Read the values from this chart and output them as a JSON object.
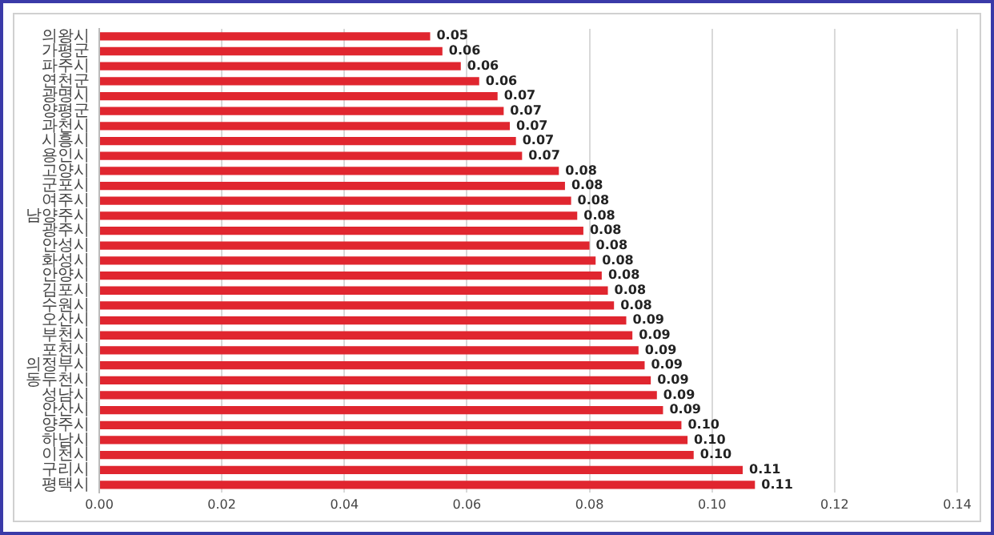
{
  "chart_data": {
    "type": "bar",
    "orientation": "horizontal",
    "categories": [
      "의왕시",
      "가평군",
      "파주시",
      "연천군",
      "광명시",
      "양평군",
      "과천시",
      "시흥시",
      "용인시",
      "고양시",
      "군포시",
      "여주시",
      "남양주시",
      "광주시",
      "안성시",
      "화성시",
      "안양시",
      "김포시",
      "수원시",
      "오산시",
      "부천시",
      "포천시",
      "의정부시",
      "동두천시",
      "성남시",
      "안산시",
      "양주시",
      "하남시",
      "이천시",
      "구리시",
      "평택시"
    ],
    "values": [
      0.054,
      0.056,
      0.059,
      0.062,
      0.065,
      0.066,
      0.067,
      0.068,
      0.069,
      0.075,
      0.076,
      0.077,
      0.078,
      0.079,
      0.08,
      0.081,
      0.082,
      0.083,
      0.084,
      0.086,
      0.087,
      0.088,
      0.089,
      0.09,
      0.091,
      0.092,
      0.095,
      0.096,
      0.097,
      0.105,
      0.107
    ],
    "value_labels": [
      "0.05",
      "0.06",
      "0.06",
      "0.06",
      "0.07",
      "0.07",
      "0.07",
      "0.07",
      "0.07",
      "0.08",
      "0.08",
      "0.08",
      "0.08",
      "0.08",
      "0.08",
      "0.08",
      "0.08",
      "0.08",
      "0.08",
      "0.09",
      "0.09",
      "0.09",
      "0.09",
      "0.09",
      "0.09",
      "0.09",
      "0.10",
      "0.10",
      "0.10",
      "0.11",
      "0.11"
    ],
    "color": "#e0262f",
    "xlim": [
      0,
      0.14
    ],
    "xticks": [
      {
        "value": 0,
        "label": "0.00"
      },
      {
        "value": 0.02,
        "label": "0.02"
      },
      {
        "value": 0.04,
        "label": "0.04"
      },
      {
        "value": 0.06,
        "label": "0.06"
      },
      {
        "value": 0.08,
        "label": "0.08"
      },
      {
        "value": 0.1,
        "label": "0.10"
      },
      {
        "value": 0.12,
        "label": "0.12"
      },
      {
        "value": 0.14,
        "label": "0.14"
      }
    ],
    "grid": "x",
    "legend": false
  }
}
